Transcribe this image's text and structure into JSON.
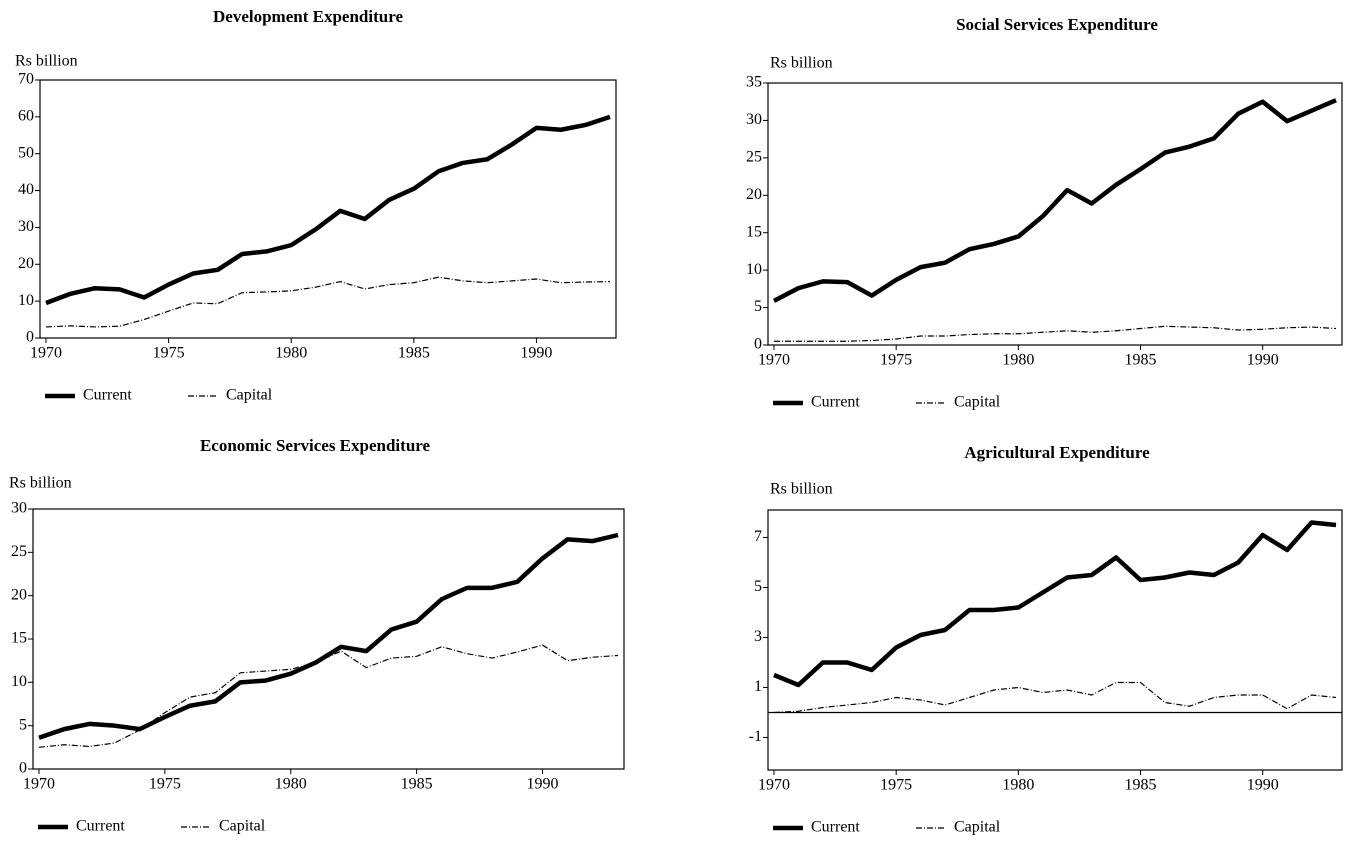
{
  "chart_data": [
    {
      "type": "line",
      "title": "Development Expenditure",
      "y_label": "Rs billion",
      "x": [
        1970,
        1971,
        1972,
        1973,
        1974,
        1975,
        1976,
        1977,
        1978,
        1979,
        1980,
        1981,
        1982,
        1983,
        1984,
        1985,
        1986,
        1987,
        1988,
        1989,
        1990,
        1991,
        1992,
        1993
      ],
      "xlim": [
        1970,
        1993
      ],
      "xticks": [
        1970,
        1975,
        1980,
        1985,
        1990
      ],
      "ylim": [
        0,
        70
      ],
      "yticks": [
        0,
        10,
        20,
        30,
        40,
        50,
        60,
        70
      ],
      "series": [
        {
          "name": "Current",
          "color": "#000000",
          "linestyle": "solid",
          "values": [
            9.5,
            12,
            13.5,
            13.2,
            11,
            14.5,
            17.5,
            18.5,
            22.8,
            23.5,
            25.2,
            29.5,
            34.5,
            32.3,
            37.5,
            40.5,
            45.2,
            47.5,
            48.5,
            52.5,
            57,
            56.5,
            57.8,
            60
          ]
        },
        {
          "name": "Capital",
          "color": "#000000",
          "linestyle": "dashdot",
          "values": [
            3,
            3.3,
            3,
            3.2,
            5,
            7.3,
            9.5,
            9.3,
            12.3,
            12.5,
            12.8,
            13.8,
            15.3,
            13.3,
            14.5,
            15,
            16.5,
            15.5,
            15,
            15.5,
            16,
            15,
            15.2,
            15.3
          ]
        }
      ]
    },
    {
      "type": "line",
      "title": "Social Services Expenditure",
      "y_label": "Rs billion",
      "x": [
        1970,
        1971,
        1972,
        1973,
        1974,
        1975,
        1976,
        1977,
        1978,
        1979,
        1980,
        1981,
        1982,
        1983,
        1984,
        1985,
        1986,
        1987,
        1988,
        1989,
        1990,
        1991,
        1992,
        1993
      ],
      "xlim": [
        1970,
        1993
      ],
      "xticks": [
        1970,
        1975,
        1980,
        1985,
        1990
      ],
      "ylim": [
        0,
        35
      ],
      "yticks": [
        0,
        5,
        10,
        15,
        20,
        25,
        30,
        35
      ],
      "series": [
        {
          "name": "Current",
          "color": "#000000",
          "linestyle": "solid",
          "values": [
            5.9,
            7.6,
            8.5,
            8.4,
            6.6,
            8.7,
            10.4,
            11,
            12.8,
            13.5,
            14.5,
            17.2,
            20.7,
            18.9,
            21.4,
            23.5,
            25.7,
            26.5,
            27.6,
            30.9,
            32.5,
            29.9,
            31.3,
            32.7
          ]
        },
        {
          "name": "Capital",
          "color": "#000000",
          "linestyle": "dashdot",
          "values": [
            0.5,
            0.5,
            0.5,
            0.5,
            0.6,
            0.8,
            1.2,
            1.2,
            1.4,
            1.5,
            1.5,
            1.7,
            1.9,
            1.7,
            1.9,
            2.2,
            2.5,
            2.4,
            2.3,
            2,
            2.1,
            2.3,
            2.4,
            2.2
          ]
        }
      ]
    },
    {
      "type": "line",
      "title": "Economic Services Expenditure",
      "y_label": "Rs billion",
      "x": [
        1970,
        1971,
        1972,
        1973,
        1974,
        1975,
        1976,
        1977,
        1978,
        1979,
        1980,
        1981,
        1982,
        1983,
        1984,
        1985,
        1986,
        1987,
        1988,
        1989,
        1990,
        1991,
        1992,
        1993
      ],
      "xlim": [
        1970,
        1993
      ],
      "xticks": [
        1970,
        1975,
        1980,
        1985,
        1990
      ],
      "ylim": [
        0,
        30
      ],
      "yticks": [
        0,
        5,
        10,
        15,
        20,
        25,
        30
      ],
      "series": [
        {
          "name": "Current",
          "color": "#000000",
          "linestyle": "solid",
          "values": [
            3.6,
            4.6,
            5.2,
            5,
            4.6,
            6,
            7.3,
            7.8,
            10,
            10.2,
            11,
            12.3,
            14.1,
            13.6,
            16.1,
            17,
            19.6,
            20.9,
            20.9,
            21.6,
            24.3,
            26.5,
            26.3,
            27
          ]
        },
        {
          "name": "Capital",
          "color": "#000000",
          "linestyle": "dashdot",
          "values": [
            2.5,
            2.8,
            2.6,
            3,
            4.5,
            6.5,
            8.3,
            8.8,
            11.1,
            11.3,
            11.5,
            12.3,
            13.6,
            11.7,
            12.8,
            13,
            14.1,
            13.3,
            12.8,
            13.5,
            14.3,
            12.5,
            12.9,
            13.1
          ]
        }
      ]
    },
    {
      "type": "line",
      "title": "Agricultural Expenditure",
      "y_label": "Rs billion",
      "x": [
        1970,
        1971,
        1972,
        1973,
        1974,
        1975,
        1976,
        1977,
        1978,
        1979,
        1980,
        1981,
        1982,
        1983,
        1984,
        1985,
        1986,
        1987,
        1988,
        1989,
        1990,
        1991,
        1992,
        1993
      ],
      "xlim": [
        1970,
        1993
      ],
      "xticks": [
        1970,
        1975,
        1980,
        1985,
        1990
      ],
      "ylim": [
        -2.3,
        8.1
      ],
      "yticks": [
        -1,
        1,
        3,
        5,
        7
      ],
      "zero_line": true,
      "series": [
        {
          "name": "Current",
          "color": "#000000",
          "linestyle": "solid",
          "values": [
            1.5,
            1.1,
            2,
            2,
            1.7,
            2.6,
            3.1,
            3.3,
            4.1,
            4.1,
            4.2,
            4.8,
            5.4,
            5.5,
            6.2,
            5.3,
            5.4,
            5.6,
            5.5,
            6,
            7.1,
            6.5,
            7.6,
            7.5
          ]
        },
        {
          "name": "Capital",
          "color": "#000000",
          "linestyle": "dashdot",
          "values": [
            0,
            0.05,
            0.2,
            0.3,
            0.4,
            0.6,
            0.5,
            0.3,
            0.6,
            0.9,
            1,
            0.8,
            0.9,
            0.7,
            1.2,
            1.2,
            0.4,
            0.25,
            0.6,
            0.7,
            0.7,
            0.15,
            0.7,
            0.6
          ]
        }
      ]
    }
  ]
}
